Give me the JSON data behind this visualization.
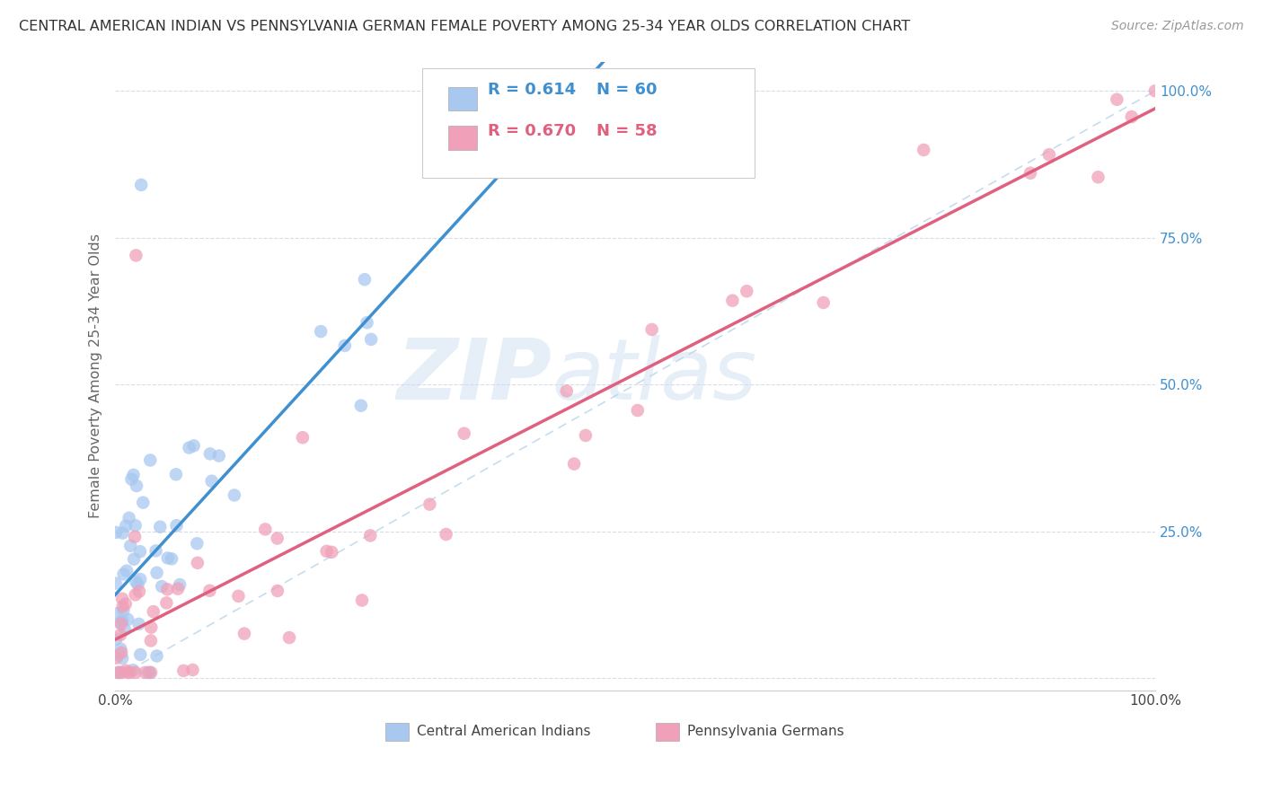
{
  "title": "CENTRAL AMERICAN INDIAN VS PENNSYLVANIA GERMAN FEMALE POVERTY AMONG 25-34 YEAR OLDS CORRELATION CHART",
  "source": "Source: ZipAtlas.com",
  "ylabel": "Female Poverty Among 25-34 Year Olds",
  "legend_label1": "Central American Indians",
  "legend_label2": "Pennsylvania Germans",
  "legend_R1": "R = 0.614",
  "legend_N1": "N = 60",
  "legend_R2": "R = 0.670",
  "legend_N2": "N = 58",
  "color_blue": "#A8C8F0",
  "color_pink": "#F0A0B8",
  "color_blue_text": "#4090D0",
  "color_pink_text": "#E06080",
  "color_blue_line": "#4090D0",
  "color_pink_line": "#E06080",
  "color_dashed": "#B8D4EC",
  "watermark_zip": "ZIP",
  "watermark_atlas": "atlas",
  "grid_color": "#D8DCE8",
  "bg_color": "#FFFFFF",
  "blue_x": [
    0.02,
    0.04,
    0.04,
    0.06,
    0.065,
    0.01,
    0.01,
    0.01,
    0.012,
    0.013,
    0.014,
    0.015,
    0.015,
    0.016,
    0.017,
    0.018,
    0.018,
    0.019,
    0.02,
    0.021,
    0.022,
    0.022,
    0.023,
    0.024,
    0.025,
    0.026,
    0.027,
    0.028,
    0.03,
    0.031,
    0.033,
    0.034,
    0.035,
    0.036,
    0.038,
    0.04,
    0.042,
    0.045,
    0.048,
    0.05,
    0.055,
    0.058,
    0.062,
    0.068,
    0.075,
    0.085,
    0.09,
    0.1,
    0.12,
    0.14,
    0.005,
    0.007,
    0.008,
    0.009,
    0.011,
    0.013,
    0.016,
    0.019,
    0.023,
    0.028
  ],
  "blue_y": [
    0.65,
    0.65,
    0.68,
    0.67,
    0.69,
    0.62,
    0.63,
    0.65,
    0.55,
    0.57,
    0.52,
    0.5,
    0.48,
    0.48,
    0.47,
    0.45,
    0.43,
    0.42,
    0.4,
    0.38,
    0.37,
    0.35,
    0.35,
    0.33,
    0.32,
    0.3,
    0.28,
    0.27,
    0.25,
    0.25,
    0.23,
    0.22,
    0.22,
    0.2,
    0.19,
    0.18,
    0.17,
    0.17,
    0.15,
    0.15,
    0.14,
    0.14,
    0.83,
    0.13,
    0.13,
    0.12,
    0.12,
    0.12,
    0.11,
    0.11,
    0.2,
    0.19,
    0.18,
    0.17,
    0.16,
    0.15,
    0.14,
    0.13,
    0.12,
    0.11
  ],
  "pink_x": [
    0.01,
    0.012,
    0.013,
    0.014,
    0.015,
    0.016,
    0.018,
    0.019,
    0.02,
    0.021,
    0.022,
    0.023,
    0.024,
    0.025,
    0.026,
    0.028,
    0.03,
    0.032,
    0.035,
    0.038,
    0.04,
    0.045,
    0.05,
    0.055,
    0.06,
    0.065,
    0.07,
    0.075,
    0.08,
    0.09,
    0.1,
    0.11,
    0.12,
    0.14,
    0.16,
    0.18,
    0.22,
    0.26,
    0.3,
    0.35,
    0.4,
    0.45,
    0.5,
    0.55,
    0.6,
    0.65,
    0.7,
    0.75,
    0.8,
    0.85,
    0.02,
    0.025,
    0.03,
    0.04,
    0.06,
    0.08,
    0.12,
    1.0
  ],
  "pink_y": [
    0.05,
    0.06,
    0.07,
    0.05,
    0.08,
    0.06,
    0.09,
    0.1,
    0.08,
    0.1,
    0.09,
    0.1,
    0.11,
    0.1,
    0.12,
    0.12,
    0.13,
    0.13,
    0.14,
    0.15,
    0.16,
    0.18,
    0.19,
    0.22,
    0.24,
    0.26,
    0.28,
    0.3,
    0.28,
    0.32,
    0.35,
    0.38,
    0.36,
    0.4,
    0.42,
    0.45,
    0.48,
    0.5,
    0.52,
    0.55,
    0.55,
    0.58,
    0.6,
    0.62,
    0.65,
    0.68,
    0.72,
    0.75,
    0.78,
    0.82,
    0.68,
    0.72,
    0.76,
    0.13,
    0.15,
    0.17,
    0.12,
    1.0
  ],
  "xlim": [
    0.0,
    1.0
  ],
  "ylim": [
    -0.02,
    1.05
  ]
}
